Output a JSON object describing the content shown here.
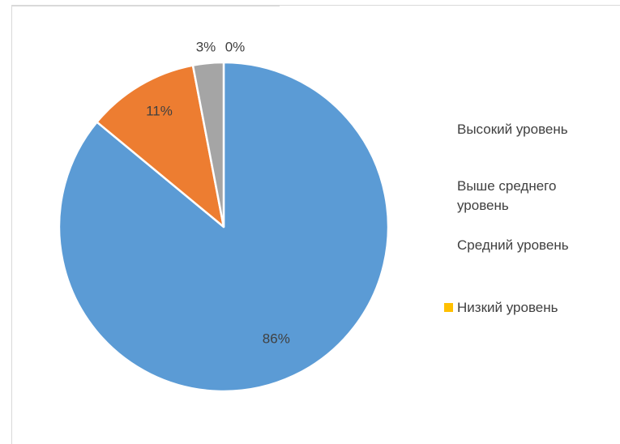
{
  "chart_data": {
    "type": "pie",
    "categories": [
      "Высокий уровень",
      "Выше среднего уровень",
      "Средний уровень",
      "Низкий уровень"
    ],
    "values": [
      86,
      11,
      3,
      0
    ],
    "data_labels": [
      "86%",
      "11%",
      "3%",
      "0%"
    ],
    "colors": [
      "#5b9bd5",
      "#ed7d31",
      "#a5a5a5",
      "#ffc000"
    ],
    "legend_placement": "right",
    "legend_swatch_visible": [
      false,
      false,
      false,
      true
    ]
  }
}
